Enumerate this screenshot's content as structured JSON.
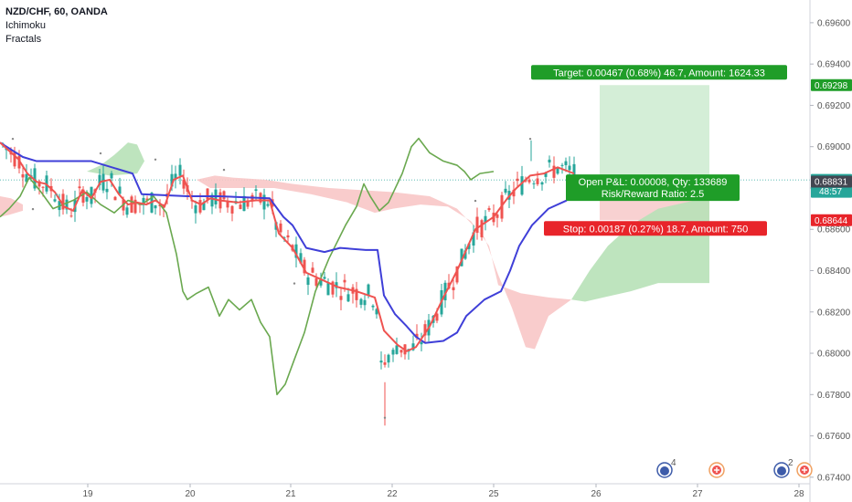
{
  "legend": {
    "symbol": "NZD/CHF, 60, OANDA",
    "indicators": [
      "Ichimoku",
      "Fractals"
    ]
  },
  "colors": {
    "up": "#26a69a",
    "down": "#ef5350",
    "tenkan": "#ef5350",
    "kijun": "#3f3fd8",
    "chikou": "#6aa84f",
    "kumo_bull": "#b7e1b7",
    "kumo_bear": "#f8c6c6",
    "target_zone": "#cdebd0",
    "stop_zone": "#f7c9c9",
    "target_label": "#1f9d28",
    "stop_label": "#e8242a",
    "current_price": "#26a69a",
    "last_close": "#434651",
    "stop_badge": "#e8242a"
  },
  "chart_data": {
    "type": "candlestick",
    "title": "NZD/CHF, 60, OANDA",
    "x_ticks": [
      "19",
      "20",
      "21",
      "22",
      "25",
      "26",
      "27",
      "28"
    ],
    "y_ticks": [
      "0.69600",
      "0.69400",
      "0.69200",
      "0.69000",
      "0.68800",
      "0.68600",
      "0.68400",
      "0.68200",
      "0.68000",
      "0.67800",
      "0.67600",
      "0.67400"
    ],
    "ylim": [
      0.6728,
      0.6971
    ],
    "grid": false,
    "price_badges": [
      {
        "value": "0.69298",
        "role": "target"
      },
      {
        "value": "0.68839",
        "role": "current",
        "sub": "48:57"
      },
      {
        "value": "0.68831",
        "role": "last"
      },
      {
        "value": "0.68644",
        "role": "stop"
      }
    ],
    "position": {
      "entry": 0.68831,
      "target": 0.69298,
      "stop": 0.68644,
      "target_label": "Target: 0.00467 (0.68%) 46.7, Amount: 1624.33",
      "pnl_label": "Open P&L: 0.00008, Qty: 133689",
      "rr_label": "Risk/Reward Ratio: 2.5",
      "stop_label": "Stop: 0.00187 (0.27%) 18.7, Amount: 750"
    },
    "event_markers": [
      "4",
      "",
      "2",
      ""
    ],
    "series": [
      {
        "name": "Tenkan",
        "points": [
          [
            0,
            0.6902
          ],
          [
            10,
            0.6898
          ],
          [
            20,
            0.6894
          ],
          [
            30,
            0.6887
          ],
          [
            40,
            0.6883
          ],
          [
            50,
            0.6882
          ],
          [
            60,
            0.6878
          ],
          [
            70,
            0.6871
          ],
          [
            80,
            0.6869
          ],
          [
            90,
            0.6879
          ],
          [
            100,
            0.6875
          ],
          [
            110,
            0.6883
          ],
          [
            120,
            0.6884
          ],
          [
            130,
            0.6877
          ],
          [
            140,
            0.6872
          ],
          [
            150,
            0.6873
          ],
          [
            160,
            0.6872
          ],
          [
            170,
            0.6874
          ],
          [
            180,
            0.6871
          ],
          [
            190,
            0.6884
          ],
          [
            200,
            0.6886
          ],
          [
            210,
            0.6874
          ],
          [
            220,
            0.6872
          ],
          [
            230,
            0.6875
          ],
          [
            240,
            0.6874
          ],
          [
            260,
            0.6873
          ],
          [
            280,
            0.6874
          ],
          [
            295,
            0.6874
          ],
          [
            305,
            0.6858
          ],
          [
            320,
            0.6851
          ],
          [
            335,
            0.6839
          ],
          [
            350,
            0.6836
          ],
          [
            370,
            0.6832
          ],
          [
            390,
            0.683
          ],
          [
            410,
            0.6827
          ],
          [
            420,
            0.6811
          ],
          [
            435,
            0.6804
          ],
          [
            445,
            0.6801
          ],
          [
            455,
            0.6803
          ],
          [
            470,
            0.6813
          ],
          [
            485,
            0.6827
          ],
          [
            500,
            0.684
          ],
          [
            520,
            0.686
          ],
          [
            540,
            0.6866
          ],
          [
            555,
            0.6875
          ],
          [
            565,
            0.688
          ],
          [
            580,
            0.6886
          ],
          [
            595,
            0.6887
          ],
          [
            610,
            0.689
          ],
          [
            628,
            0.6887
          ]
        ]
      },
      {
        "name": "Kijun",
        "points": [
          [
            0,
            0.6902
          ],
          [
            25,
            0.6895
          ],
          [
            40,
            0.6893
          ],
          [
            100,
            0.6893
          ],
          [
            145,
            0.6887
          ],
          [
            155,
            0.6877
          ],
          [
            205,
            0.6876
          ],
          [
            240,
            0.6876
          ],
          [
            295,
            0.6875
          ],
          [
            310,
            0.6866
          ],
          [
            320,
            0.6862
          ],
          [
            335,
            0.6851
          ],
          [
            355,
            0.6849
          ],
          [
            372,
            0.6851
          ],
          [
            400,
            0.685
          ],
          [
            413,
            0.685
          ],
          [
            420,
            0.6828
          ],
          [
            432,
            0.6819
          ],
          [
            445,
            0.6813
          ],
          [
            455,
            0.6808
          ],
          [
            465,
            0.6805
          ],
          [
            485,
            0.6806
          ],
          [
            500,
            0.681
          ],
          [
            510,
            0.6818
          ],
          [
            530,
            0.6826
          ],
          [
            548,
            0.683
          ],
          [
            558,
            0.684
          ],
          [
            568,
            0.6852
          ],
          [
            582,
            0.6862
          ],
          [
            600,
            0.687
          ],
          [
            620,
            0.6874
          ]
        ]
      },
      {
        "name": "Chikou",
        "points": [
          [
            0,
            0.6866
          ],
          [
            10,
            0.687
          ],
          [
            22,
            0.6876
          ],
          [
            32,
            0.6885
          ],
          [
            45,
            0.6878
          ],
          [
            58,
            0.687
          ],
          [
            80,
            0.6874
          ],
          [
            95,
            0.6878
          ],
          [
            110,
            0.6872
          ],
          [
            125,
            0.6868
          ],
          [
            140,
            0.6874
          ],
          [
            155,
            0.6872
          ],
          [
            168,
            0.6876
          ],
          [
            182,
            0.6868
          ],
          [
            193,
            0.6848
          ],
          [
            200,
            0.683
          ],
          [
            205,
            0.6826
          ],
          [
            215,
            0.6829
          ],
          [
            228,
            0.6832
          ],
          [
            240,
            0.6818
          ],
          [
            250,
            0.6826
          ],
          [
            262,
            0.6821
          ],
          [
            275,
            0.6826
          ],
          [
            285,
            0.6815
          ],
          [
            295,
            0.6808
          ],
          [
            303,
            0.678
          ],
          [
            312,
            0.6785
          ],
          [
            322,
            0.6797
          ],
          [
            333,
            0.681
          ],
          [
            345,
            0.683
          ],
          [
            360,
            0.6846
          ],
          [
            378,
            0.6862
          ],
          [
            390,
            0.6871
          ],
          [
            398,
            0.6882
          ],
          [
            405,
            0.6876
          ],
          [
            415,
            0.6869
          ],
          [
            425,
            0.6873
          ],
          [
            440,
            0.6887
          ],
          [
            450,
            0.69
          ],
          [
            458,
            0.6904
          ],
          [
            470,
            0.6897
          ],
          [
            485,
            0.6893
          ],
          [
            500,
            0.6891
          ],
          [
            508,
            0.6888
          ],
          [
            515,
            0.6884
          ],
          [
            525,
            0.6887
          ],
          [
            540,
            0.6888
          ]
        ]
      }
    ]
  }
}
